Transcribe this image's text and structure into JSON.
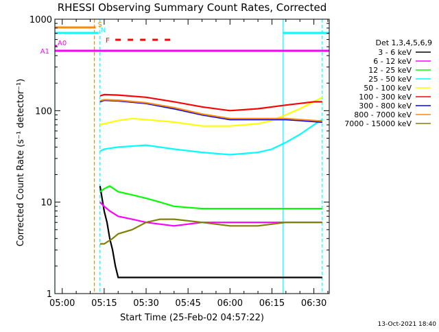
{
  "chart_data": {
    "type": "line",
    "title": "RHESSI Observing Summary Count Rates, Corrected",
    "xlabel": "Start Time (25-Feb-02 04:57:22)",
    "ylabel": "Corrected Count Rate (s⁻¹ detector⁻¹)",
    "y_scale": "log",
    "ylim": [
      1,
      1000
    ],
    "y_ticks": [
      {
        "value": 1,
        "label": "1"
      },
      {
        "value": 10,
        "label": "10"
      },
      {
        "value": 100,
        "label": "100"
      },
      {
        "value": 1000,
        "label": "1000"
      }
    ],
    "xlim": [
      "04:57:22",
      "06:35:30"
    ],
    "x_ticks": [
      "05:00",
      "05:15",
      "05:30",
      "05:45",
      "06:00",
      "06:15",
      "06:30"
    ],
    "legend_title": "Det 1,3,4,5,6,9",
    "legend_placement": "right",
    "series": [
      {
        "name": "3 - 6 keV",
        "color": "#000000",
        "x": [
          "05:13:30",
          "05:15:00",
          "05:16:00",
          "05:17:00",
          "05:18:00",
          "05:19:00",
          "05:20:00",
          "05:25:00",
          "05:35:00",
          "05:50:00",
          "06:05:00",
          "06:20:00",
          "06:30:00",
          "06:33:00"
        ],
        "y": [
          15,
          8,
          6,
          4,
          3,
          2,
          1.5,
          1.5,
          1.5,
          1.5,
          1.5,
          1.5,
          1.5,
          1.5
        ]
      },
      {
        "name": "6 - 12 keV",
        "color": "#ff00ff",
        "x": [
          "05:13:30",
          "05:15:00",
          "05:17:00",
          "05:20:00",
          "05:25:00",
          "05:30:00",
          "05:40:00",
          "05:50:00",
          "06:00:00",
          "06:10:00",
          "06:20:00",
          "06:30:00",
          "06:33:00"
        ],
        "y": [
          10,
          9,
          8,
          7,
          6.5,
          6,
          5.5,
          6,
          6,
          6,
          6,
          6,
          6
        ]
      },
      {
        "name": "12 - 25 keV",
        "color": "#00ff00",
        "x": [
          "05:13:30",
          "05:15:00",
          "05:17:00",
          "05:20:00",
          "05:25:00",
          "05:30:00",
          "05:35:00",
          "05:40:00",
          "05:50:00",
          "06:00:00",
          "06:10:00",
          "06:20:00",
          "06:30:00",
          "06:33:00"
        ],
        "y": [
          13,
          14,
          15,
          13,
          12,
          11,
          10,
          9,
          8.5,
          8.5,
          8.5,
          8.5,
          8.5,
          8.5
        ]
      },
      {
        "name": "25 - 50 keV",
        "color": "#00ffff",
        "x": [
          "05:13:30",
          "05:15:00",
          "05:20:00",
          "05:30:00",
          "05:40:00",
          "05:50:00",
          "06:00:00",
          "06:10:00",
          "06:15:00",
          "06:20:00",
          "06:25:00",
          "06:30:00",
          "06:33:00"
        ],
        "y": [
          36,
          38,
          40,
          42,
          38,
          35,
          33,
          35,
          38,
          45,
          55,
          70,
          80
        ]
      },
      {
        "name": "50 - 100 keV",
        "color": "#ffff00",
        "x": [
          "05:13:30",
          "05:15:00",
          "05:20:00",
          "05:25:00",
          "05:30:00",
          "05:40:00",
          "05:50:00",
          "06:00:00",
          "06:10:00",
          "06:15:00",
          "06:20:00",
          "06:25:00",
          "06:30:00",
          "06:33:00"
        ],
        "y": [
          70,
          72,
          78,
          82,
          80,
          75,
          68,
          68,
          72,
          78,
          90,
          105,
          125,
          140
        ]
      },
      {
        "name": "100 - 300 keV",
        "color": "#ff0000",
        "x": [
          "05:13:30",
          "05:15:00",
          "05:20:00",
          "05:30:00",
          "05:40:00",
          "05:50:00",
          "06:00:00",
          "06:10:00",
          "06:20:00",
          "06:25:00",
          "06:30:00",
          "06:33:00"
        ],
        "y": [
          145,
          150,
          148,
          140,
          125,
          110,
          100,
          105,
          115,
          120,
          125,
          125
        ]
      },
      {
        "name": "300 - 800 keV",
        "color": "#0000ff",
        "x": [
          "05:13:30",
          "05:15:00",
          "05:20:00",
          "05:30:00",
          "05:40:00",
          "05:50:00",
          "06:00:00",
          "06:10:00",
          "06:20:00",
          "06:25:00",
          "06:30:00",
          "06:33:00"
        ],
        "y": [
          125,
          130,
          128,
          120,
          105,
          90,
          80,
          80,
          80,
          78,
          76,
          75
        ]
      },
      {
        "name": "800 - 7000 keV",
        "color": "#ff8800",
        "x": [
          "05:13:30",
          "05:15:00",
          "05:20:00",
          "05:30:00",
          "05:40:00",
          "05:50:00",
          "06:00:00",
          "06:10:00",
          "06:20:00",
          "06:25:00",
          "06:30:00",
          "06:33:00"
        ],
        "y": [
          128,
          132,
          130,
          122,
          108,
          92,
          82,
          82,
          82,
          80,
          78,
          77
        ]
      },
      {
        "name": "7000 - 15000 keV",
        "color": "#808000",
        "x": [
          "05:13:30",
          "05:15:00",
          "05:18:00",
          "05:20:00",
          "05:25:00",
          "05:30:00",
          "05:35:00",
          "05:40:00",
          "05:50:00",
          "06:00:00",
          "06:10:00",
          "06:20:00",
          "06:30:00",
          "06:33:00"
        ],
        "y": [
          3.5,
          3.5,
          4,
          4.5,
          5,
          6,
          6.5,
          6.5,
          6,
          5.5,
          5.5,
          6,
          6,
          6
        ]
      }
    ],
    "flag_bars": [
      {
        "label": "S",
        "color": "#ff8800",
        "x_start": "04:57:22",
        "x_end": "05:12:00"
      },
      {
        "label": "N",
        "color": "#00ffff",
        "x_start": "04:57:22",
        "x_end": "05:13:00"
      },
      {
        "label": "N",
        "color": "#00ffff",
        "x_start": "06:19:00",
        "x_end": "06:35:30"
      },
      {
        "label": "F",
        "color": "#ff0000",
        "x_start": "05:19:00",
        "x_end": "05:41:00",
        "style": "dashed"
      },
      {
        "label": "A0",
        "color": "#ff00ff",
        "x_start": "04:57:22",
        "x_end": "04:58:00"
      },
      {
        "label": "A1",
        "color": "#ff00ff",
        "x_start": "04:57:22",
        "x_end": "06:35:30"
      }
    ],
    "vertical_markers": [
      {
        "x": "04:57:22",
        "color": "#00ffff",
        "style": "solid"
      },
      {
        "x": "05:11:30",
        "color": "#ff8800",
        "style": "dashed"
      },
      {
        "x": "05:13:30",
        "color": "#00ffff",
        "style": "dashed"
      },
      {
        "x": "06:19:00",
        "color": "#00ffff",
        "style": "solid"
      },
      {
        "x": "06:33:00",
        "color": "#00ffff",
        "style": "dashed"
      }
    ],
    "footer_date": "13-Oct-2021 18:40"
  }
}
